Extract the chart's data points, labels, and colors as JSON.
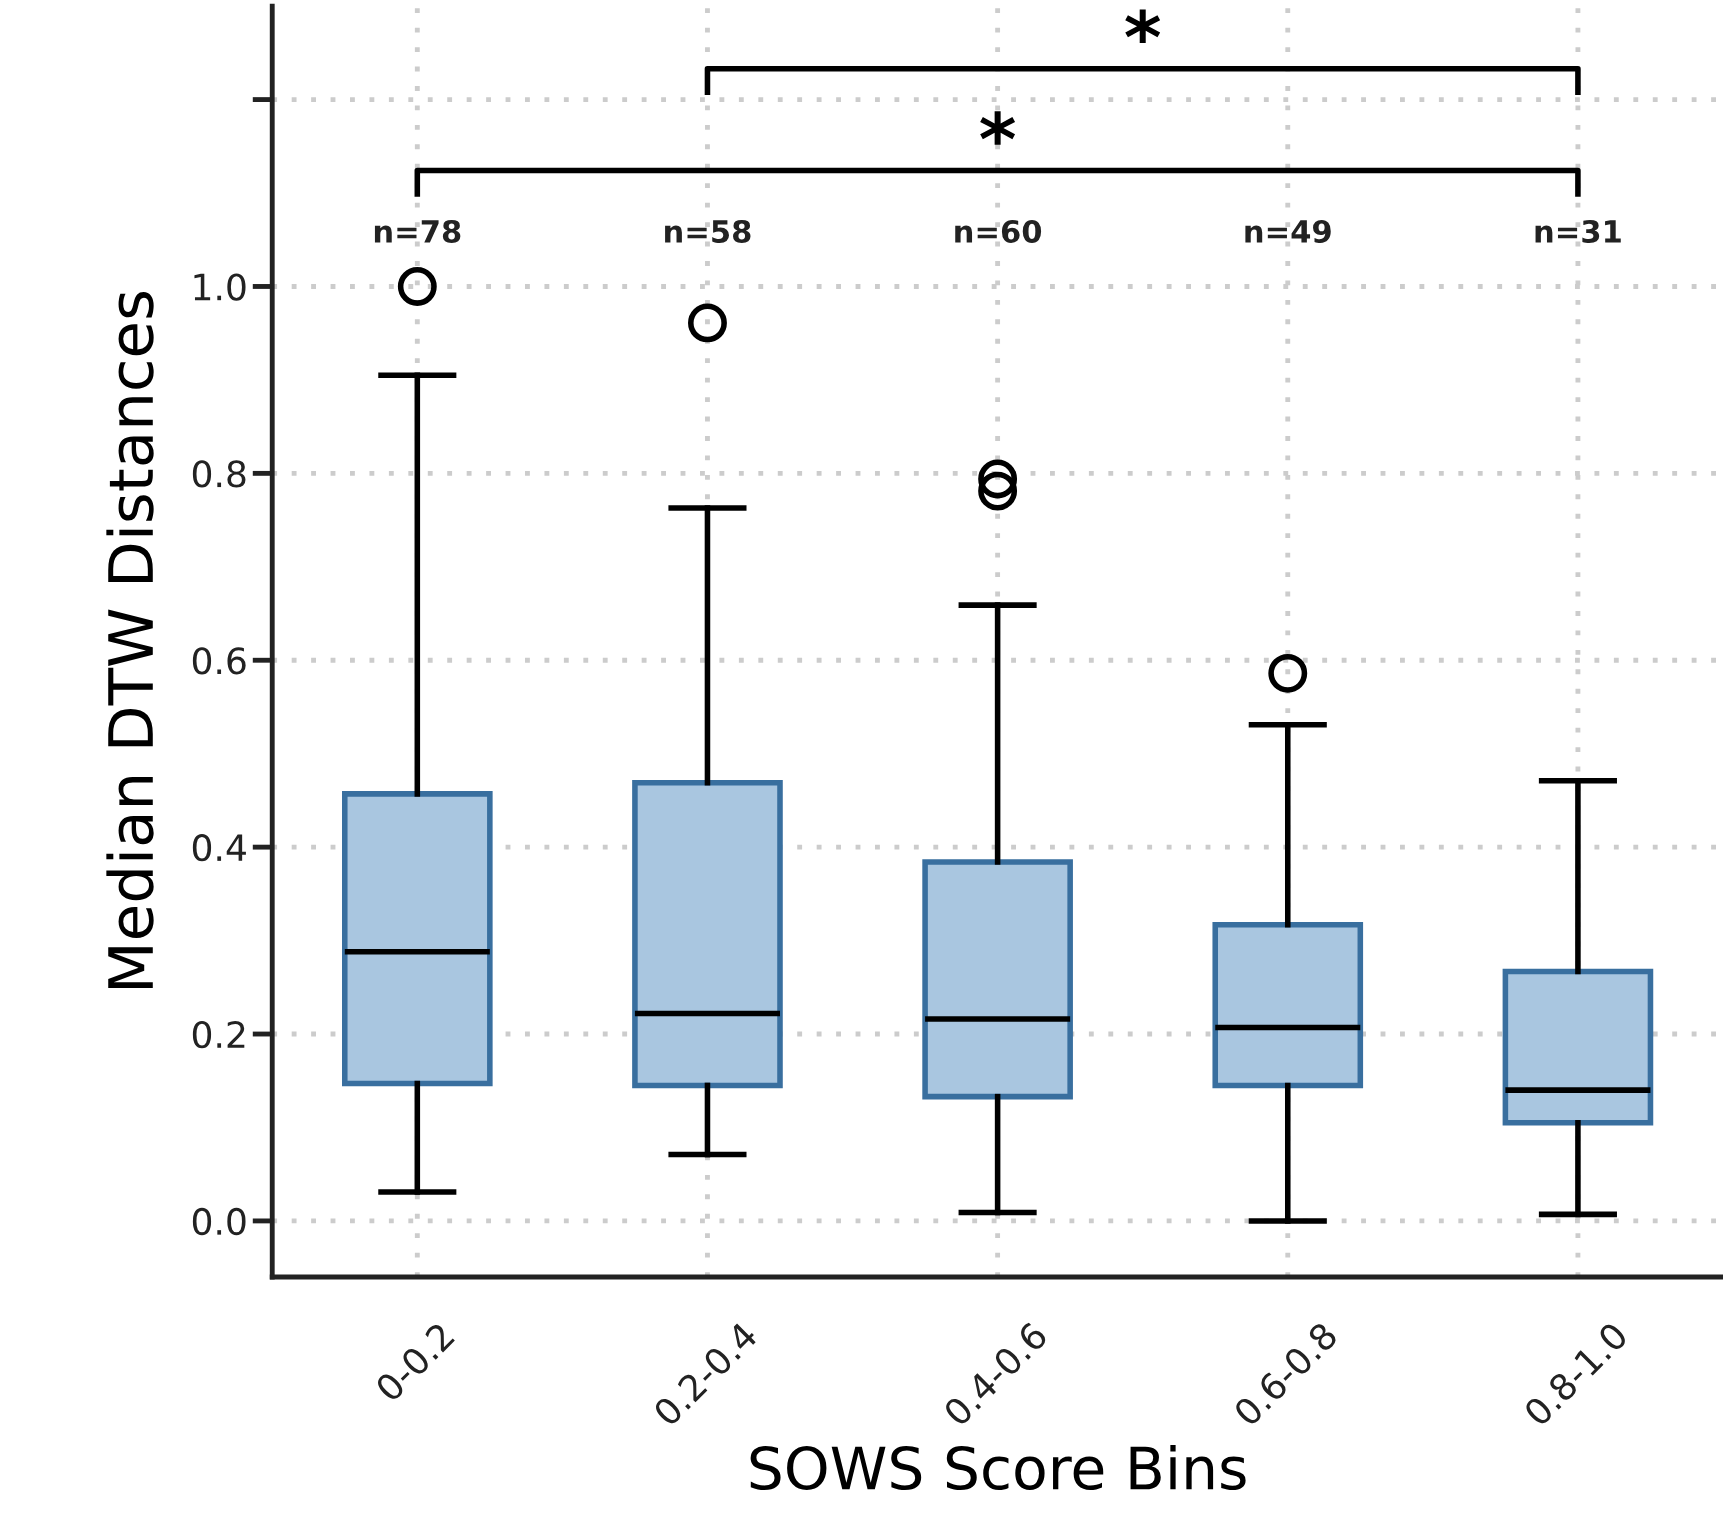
{
  "chart_data": {
    "type": "box",
    "xlabel": "SOWS Score Bins",
    "ylabel": "Median DTW Distances",
    "categories": [
      "0-0.2",
      "0.2-0.4",
      "0.4-0.6",
      "0.6-0.8",
      "0.8-1.0"
    ],
    "boxes": [
      {
        "low": 0.031,
        "q1": 0.147,
        "median": 0.288,
        "q3": 0.457,
        "high": 0.905,
        "outliers": [
          1.0
        ]
      },
      {
        "low": 0.071,
        "q1": 0.145,
        "median": 0.222,
        "q3": 0.469,
        "high": 0.763,
        "outliers": [
          0.961
        ]
      },
      {
        "low": 0.009,
        "q1": 0.133,
        "median": 0.216,
        "q3": 0.384,
        "high": 0.659,
        "outliers": [
          0.794,
          0.781
        ]
      },
      {
        "low": 0.0,
        "q1": 0.145,
        "median": 0.207,
        "q3": 0.317,
        "high": 0.531,
        "outliers": [
          0.586
        ]
      },
      {
        "low": 0.007,
        "q1": 0.105,
        "median": 0.14,
        "q3": 0.267,
        "high": 0.471
      }
    ],
    "color": "#a9c6e0",
    "ylim": [
      -0.06,
      1.3
    ],
    "yticks": [
      {
        "value": 0.0,
        "label": "0.0"
      },
      {
        "value": 0.2,
        "label": "0.2"
      },
      {
        "value": 0.4,
        "label": "0.4"
      },
      {
        "value": 0.6,
        "label": "0.6"
      },
      {
        "value": 0.8,
        "label": "0.8"
      },
      {
        "value": 1.0,
        "label": "1.0"
      },
      {
        "value": 1.2,
        "label": null
      }
    ],
    "grid": true,
    "annotations": [
      "n=78",
      "n=58",
      "n=60",
      "n=49",
      "n=31",
      "*",
      "*"
    ]
  }
}
